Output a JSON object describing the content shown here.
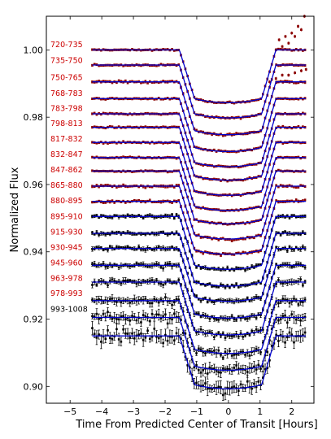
{
  "chart_data": {
    "type": "scatter",
    "title": "",
    "xlabel": "Time From Predicted Center of Transit [Hours]",
    "ylabel": "Normalized Flux",
    "xlim": [
      -5.75,
      2.7
    ],
    "ylim": [
      0.895,
      1.01
    ],
    "xticks": [
      -5,
      -4,
      -3,
      -2,
      -1,
      0,
      1,
      2
    ],
    "yticks": [
      0.9,
      0.92,
      0.94,
      0.96,
      0.98,
      1.0
    ],
    "ytick_labels": [
      "0.90",
      "0.92",
      "0.94",
      "0.96",
      "0.98",
      "1.00"
    ],
    "grid": false,
    "transit_model": {
      "t_ingress_start": -1.55,
      "t_ingress_end": -1.07,
      "t_egress_start": 1.05,
      "t_egress_end": 1.5,
      "depth": 0.0145,
      "x_range": [
        -4.3,
        2.45
      ],
      "line_color": "#0000cc"
    },
    "series": [
      {
        "name": "720-735",
        "offset": 1.0,
        "color": "#8b0000",
        "label_color": "#cc0000",
        "scatter": 0.0002
      },
      {
        "name": "735-750",
        "offset": 0.9955,
        "color": "#8b0000",
        "label_color": "#cc0000",
        "scatter": 0.0002
      },
      {
        "name": "750-765",
        "offset": 0.9905,
        "color": "#8b0000",
        "label_color": "#cc0000",
        "scatter": 0.0003
      },
      {
        "name": "768-783",
        "offset": 0.9855,
        "color": "#8b0000",
        "label_color": "#cc0000",
        "scatter": 0.0002
      },
      {
        "name": "783-798",
        "offset": 0.981,
        "color": "#8b0000",
        "label_color": "#cc0000",
        "scatter": 0.0002
      },
      {
        "name": "798-813",
        "offset": 0.977,
        "color": "#8b0000",
        "label_color": "#cc0000",
        "scatter": 0.0002
      },
      {
        "name": "817-832",
        "offset": 0.9725,
        "color": "#8b0000",
        "label_color": "#cc0000",
        "scatter": 0.0002
      },
      {
        "name": "832-847",
        "offset": 0.968,
        "color": "#8b0000",
        "label_color": "#cc0000",
        "scatter": 0.0002
      },
      {
        "name": "847-862",
        "offset": 0.964,
        "color": "#8b0000",
        "label_color": "#cc0000",
        "scatter": 0.0002
      },
      {
        "name": "865-880",
        "offset": 0.9595,
        "color": "#8b0000",
        "label_color": "#cc0000",
        "scatter": 0.0003
      },
      {
        "name": "880-895",
        "offset": 0.955,
        "color": "#8b0000",
        "label_color": "#cc0000",
        "scatter": 0.0003
      },
      {
        "name": "895-910",
        "offset": 0.9505,
        "color": "#000000",
        "label_color": "#cc0000",
        "scatter": 0.0004
      },
      {
        "name": "915-930",
        "offset": 0.9455,
        "color": "#000000",
        "label_color": "#cc0000",
        "scatter": 0.0004
      },
      {
        "name": "930-945",
        "offset": 0.941,
        "color": "#000000",
        "label_color": "#cc0000",
        "scatter": 0.0005
      },
      {
        "name": "945-960",
        "offset": 0.936,
        "color": "#000000",
        "label_color": "#cc0000",
        "scatter": 0.0006
      },
      {
        "name": "963-978",
        "offset": 0.931,
        "color": "#000000",
        "label_color": "#cc0000",
        "scatter": 0.0007
      },
      {
        "name": "978-993",
        "offset": 0.9255,
        "color": "#000000",
        "label_color": "#cc0000",
        "scatter": 0.0009
      },
      {
        "name": "993-1008",
        "offset": 0.9205,
        "color": "#000000",
        "label_color": "#000000",
        "scatter": 0.0012
      },
      {
        "name": "",
        "offset": 0.915,
        "color": "#000000",
        "label_color": "#000000",
        "scatter": 0.0015
      }
    ],
    "label_y": [
      1.0016,
      0.9968,
      0.9918,
      0.9871,
      0.9826,
      0.9781,
      0.9735,
      0.9689,
      0.9643,
      0.9597,
      0.9551,
      0.9505,
      0.9459,
      0.9413,
      0.9367,
      0.9321,
      0.9276,
      0.9229
    ],
    "red_outlier_points": [
      [
        1.5,
        1.0
      ],
      [
        1.6,
        1.003
      ],
      [
        1.7,
        1.001
      ],
      [
        1.8,
        1.004
      ],
      [
        1.9,
        1.002
      ],
      [
        2.0,
        1.005
      ],
      [
        2.1,
        1.004
      ],
      [
        2.2,
        1.007
      ],
      [
        2.3,
        1.006
      ],
      [
        2.4,
        1.01
      ],
      [
        1.3,
        0.9905
      ],
      [
        1.5,
        0.9915
      ],
      [
        1.7,
        0.9925
      ],
      [
        1.9,
        0.9925
      ],
      [
        2.1,
        0.9932
      ],
      [
        2.3,
        0.9938
      ],
      [
        2.45,
        0.9942
      ]
    ]
  }
}
